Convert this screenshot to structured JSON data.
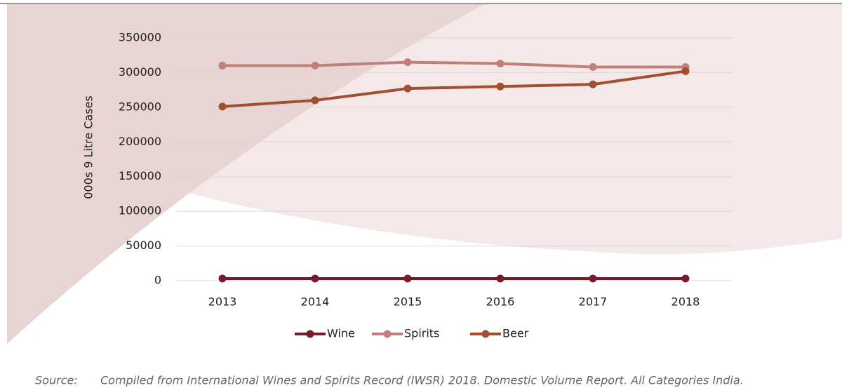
{
  "chart_data": {
    "type": "line",
    "y_label": "000s 9 Litre Cases",
    "categories": [
      "2013",
      "2014",
      "2015",
      "2016",
      "2017",
      "2018"
    ],
    "series": [
      {
        "name": "Wine",
        "color": "#7a1b2c",
        "values": [
          3000,
          3000,
          3000,
          3000,
          3000,
          3000
        ]
      },
      {
        "name": "Spirits",
        "color": "#c08079",
        "values": [
          310000,
          310000,
          315000,
          313000,
          308000,
          308000
        ]
      },
      {
        "name": "Beer",
        "color": "#a04f2f",
        "values": [
          251000,
          260000,
          277000,
          280000,
          283000,
          302000
        ]
      }
    ],
    "ylim": [
      0,
      350000
    ],
    "yticks": [
      0,
      50000,
      100000,
      150000,
      200000,
      250000,
      300000,
      350000
    ],
    "grid": true,
    "legend": "bottom",
    "source_label": "Source:",
    "source": "Compiled from International Wines and Spirits Record (IWSR) 2018. Domestic Volume Report. All Categories India."
  }
}
